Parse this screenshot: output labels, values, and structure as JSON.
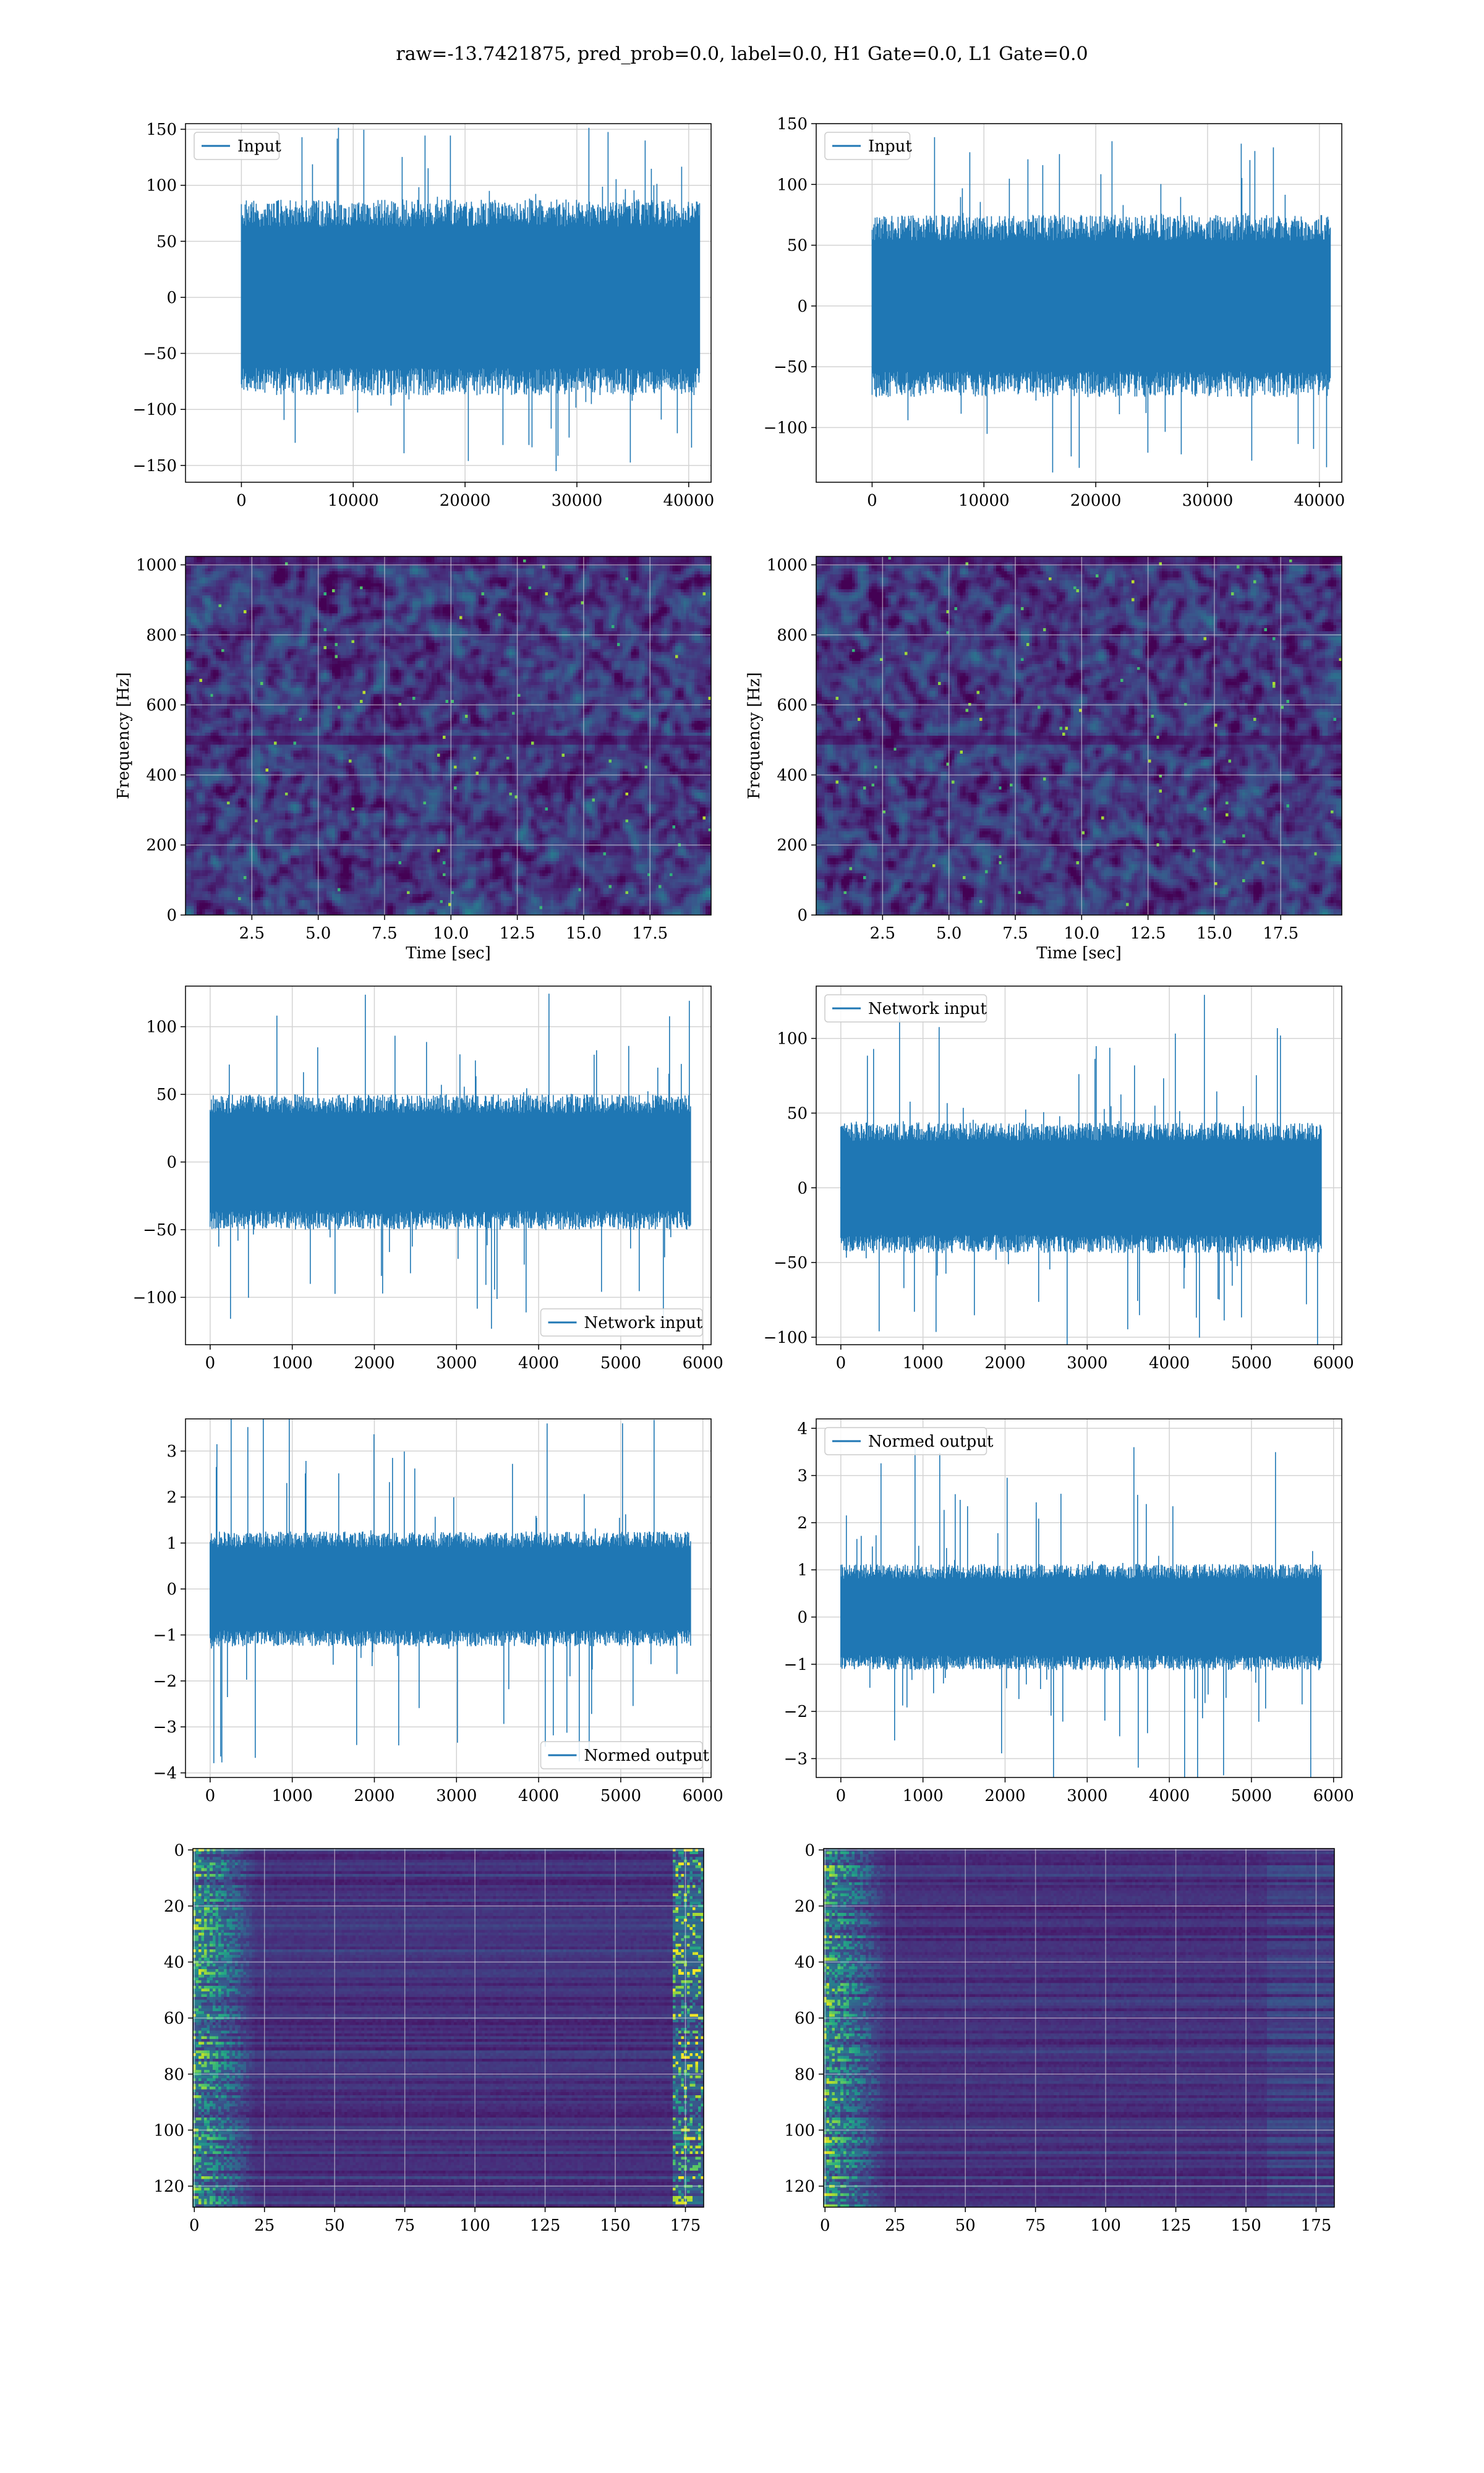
{
  "figure_title": "raw=-13.7421875, pred_prob=0.0, label=0.0, H1 Gate=0.0, L1 Gate=0.0",
  "colors": {
    "line": "#1f77b4",
    "grid": "#d3d3d3",
    "viridis": [
      "#440154",
      "#472d7b",
      "#3b528b",
      "#2c728e",
      "#21918c",
      "#28ae80",
      "#5ec962",
      "#addc30",
      "#fde725"
    ]
  },
  "chart_data": [
    {
      "id": "h1-input",
      "type": "line",
      "style": "noise",
      "xlim": [
        -5000,
        42000
      ],
      "ylim": [
        -165,
        155
      ],
      "xticks": [
        0,
        10000,
        20000,
        30000,
        40000
      ],
      "yticks": [
        -150,
        -100,
        -50,
        0,
        50,
        100,
        150
      ],
      "x_range": [
        0,
        40960
      ],
      "band_amplitude": 70,
      "peak_amplitude": 160,
      "legend": "Input",
      "legend_loc": "upper-left",
      "grid": true,
      "xlabel": "",
      "ylabel": ""
    },
    {
      "id": "l1-input",
      "type": "line",
      "style": "noise",
      "xlim": [
        -5000,
        42000
      ],
      "ylim": [
        -145,
        150
      ],
      "xticks": [
        0,
        10000,
        20000,
        30000,
        40000
      ],
      "yticks": [
        -100,
        -50,
        0,
        50,
        100,
        150
      ],
      "x_range": [
        0,
        40960
      ],
      "band_amplitude": 60,
      "peak_amplitude": 140,
      "legend": "Input",
      "legend_loc": "upper-left",
      "grid": true,
      "xlabel": "",
      "ylabel": ""
    },
    {
      "id": "h1-spectrogram",
      "type": "heatmap",
      "style": "spectrogram",
      "xlim": [
        0,
        19.8
      ],
      "ylim": [
        0,
        1024
      ],
      "xticks": [
        2.5,
        5.0,
        7.5,
        10.0,
        12.5,
        15.0,
        17.5
      ],
      "yticks": [
        0,
        200,
        400,
        600,
        800,
        1000
      ],
      "xlabel": "Time [sec]",
      "ylabel": "Frequency [Hz]",
      "grid": true,
      "legend": ""
    },
    {
      "id": "l1-spectrogram",
      "type": "heatmap",
      "style": "spectrogram",
      "xlim": [
        0,
        19.8
      ],
      "ylim": [
        0,
        1024
      ],
      "xticks": [
        2.5,
        5.0,
        7.5,
        10.0,
        12.5,
        15.0,
        17.5
      ],
      "yticks": [
        0,
        200,
        400,
        600,
        800,
        1000
      ],
      "xlabel": "Time [sec]",
      "ylabel": "Frequency [Hz]",
      "grid": true,
      "legend": ""
    },
    {
      "id": "h1-network-input",
      "type": "line",
      "style": "noise",
      "xlim": [
        -300,
        6100
      ],
      "ylim": [
        -135,
        130
      ],
      "xticks": [
        0,
        1000,
        2000,
        3000,
        4000,
        5000,
        6000
      ],
      "yticks": [
        -100,
        -50,
        0,
        50,
        100
      ],
      "x_range": [
        0,
        5850
      ],
      "band_amplitude": 40,
      "peak_amplitude": 125,
      "legend": "Network input",
      "legend_loc": "lower-right",
      "grid": true,
      "xlabel": "",
      "ylabel": ""
    },
    {
      "id": "l1-network-input",
      "type": "line",
      "style": "noise",
      "xlim": [
        -300,
        6100
      ],
      "ylim": [
        -105,
        135
      ],
      "xticks": [
        0,
        1000,
        2000,
        3000,
        4000,
        5000,
        6000
      ],
      "yticks": [
        -100,
        -50,
        0,
        50,
        100
      ],
      "x_range": [
        0,
        5850
      ],
      "band_amplitude": 35,
      "peak_amplitude": 130,
      "legend": "Network input",
      "legend_loc": "upper-left",
      "grid": true,
      "xlabel": "",
      "ylabel": ""
    },
    {
      "id": "h1-normed-output",
      "type": "line",
      "style": "noise",
      "xlim": [
        -300,
        6100
      ],
      "ylim": [
        -4.1,
        3.7
      ],
      "xticks": [
        0,
        1000,
        2000,
        3000,
        4000,
        5000,
        6000
      ],
      "yticks": [
        -4,
        -3,
        -2,
        -1,
        0,
        1,
        2,
        3
      ],
      "x_range": [
        0,
        5850
      ],
      "band_amplitude": 1.0,
      "peak_amplitude": 3.8,
      "legend": "Normed output",
      "legend_loc": "lower-right",
      "grid": true,
      "xlabel": "",
      "ylabel": ""
    },
    {
      "id": "l1-normed-output",
      "type": "line",
      "style": "noise",
      "xlim": [
        -300,
        6100
      ],
      "ylim": [
        -3.4,
        4.2
      ],
      "xticks": [
        0,
        1000,
        2000,
        3000,
        4000,
        5000,
        6000
      ],
      "yticks": [
        -3,
        -2,
        -1,
        0,
        1,
        2,
        3,
        4
      ],
      "x_range": [
        0,
        5850
      ],
      "band_amplitude": 0.9,
      "peak_amplitude": 3.9,
      "legend": "Normed output",
      "legend_loc": "upper-left",
      "grid": true,
      "xlabel": "",
      "ylabel": ""
    },
    {
      "id": "h1-feature-map",
      "type": "heatmap",
      "style": "feature-map",
      "xlim": [
        -0.5,
        181.5
      ],
      "ylim": [
        127.5,
        -0.5
      ],
      "xticks": [
        0,
        25,
        50,
        75,
        100,
        125,
        150,
        175
      ],
      "yticks": [
        0,
        20,
        40,
        60,
        80,
        100,
        120
      ],
      "rows": 128,
      "cols": 182,
      "grid": true,
      "xlabel": "",
      "ylabel": "",
      "legend": ""
    },
    {
      "id": "l1-feature-map",
      "type": "heatmap",
      "style": "feature-map",
      "xlim": [
        -0.5,
        181.5
      ],
      "ylim": [
        127.5,
        -0.5
      ],
      "xticks": [
        0,
        25,
        50,
        75,
        100,
        125,
        150,
        175
      ],
      "yticks": [
        0,
        20,
        40,
        60,
        80,
        100,
        120
      ],
      "rows": 128,
      "cols": 182,
      "grid": true,
      "xlabel": "",
      "ylabel": "",
      "legend": ""
    }
  ]
}
